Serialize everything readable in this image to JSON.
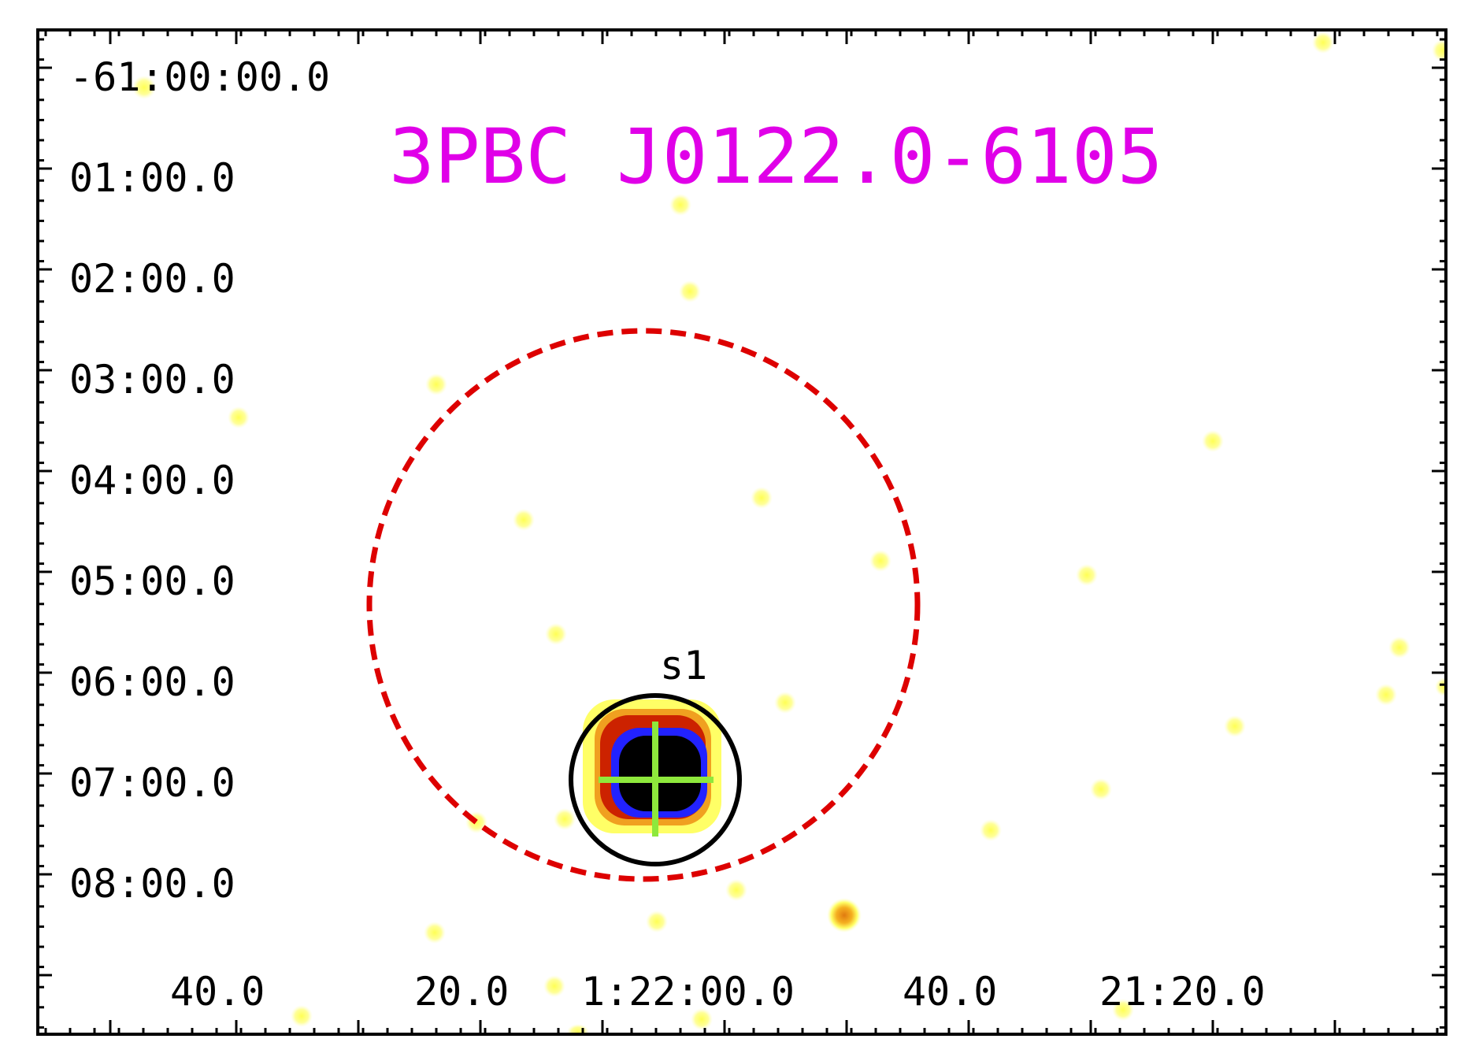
{
  "title": {
    "text": "3PBC J0122.0-6105",
    "color": "#e000e8"
  },
  "dec_labels": [
    "-61:00:00.0",
    "01:00.0",
    "02:00.0",
    "03:00.0",
    "04:00.0",
    "05:00.0",
    "06:00.0",
    "07:00.0",
    "08:00.0"
  ],
  "ra_labels": [
    "40.0",
    "20.0",
    "1:22:00.0",
    "40.0",
    "21:20.0"
  ],
  "source": {
    "label": "s1",
    "circle_color": "#000000",
    "cross_color": "#8ee83c"
  },
  "error_region": {
    "color": "#dd0000",
    "style": "dashed"
  },
  "colors": {
    "background": "#ffffff",
    "faint_source": "#ffff88",
    "core": "#000000",
    "ring_blue": "#1a1aff",
    "ring_red": "#cc2200"
  }
}
